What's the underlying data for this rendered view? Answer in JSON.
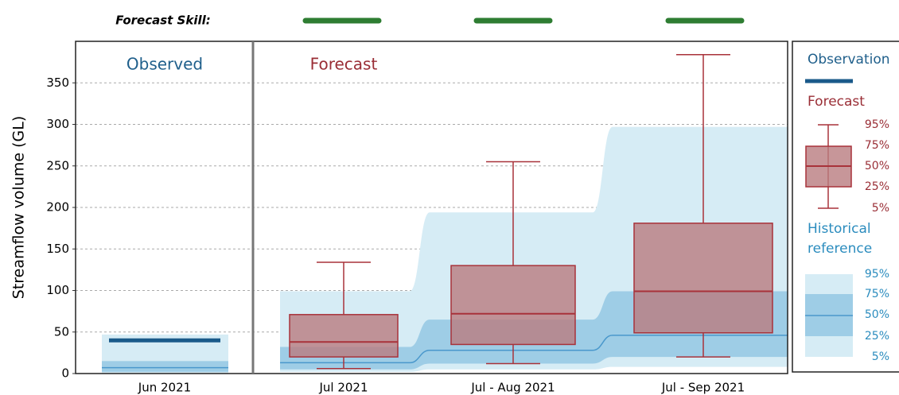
{
  "chart_data": {
    "type": "box",
    "skill_label": "Forecast Skill:",
    "skill_color": "#2e7d32",
    "panels": [
      "Observed",
      "Forecast"
    ],
    "ylabel": "Streamflow volume (GL)",
    "categories": [
      "Jun 2021",
      "Jul 2021",
      "Jul - Aug 2021",
      "Jul - Sep 2021"
    ],
    "ylim": [
      0,
      400
    ],
    "yticks": [
      0,
      50,
      100,
      150,
      200,
      250,
      300,
      350
    ],
    "grid": true,
    "observed": {
      "name": "Observation",
      "color": "#1a5a8a",
      "values": [
        40,
        null,
        null,
        null
      ]
    },
    "forecast": {
      "name": "Forecast",
      "color": "#a8323a",
      "fill": "#b97c80",
      "p5": [
        null,
        6,
        12,
        20
      ],
      "p25": [
        null,
        20,
        35,
        49
      ],
      "p50": [
        null,
        38,
        72,
        99
      ],
      "p75": [
        null,
        71,
        130,
        181
      ],
      "p95": [
        null,
        134,
        255,
        384
      ]
    },
    "historical": {
      "name": "Historical reference",
      "light": "#d6ecf5",
      "mid": "#9ecde6",
      "line": "#4a98cc",
      "p5": [
        0,
        2,
        5,
        8
      ],
      "p25": [
        2,
        5,
        12,
        20
      ],
      "p50": [
        7,
        13,
        28,
        46
      ],
      "p75": [
        15,
        32,
        65,
        99
      ],
      "p95": [
        47,
        99,
        194,
        297
      ]
    },
    "legend_levels": [
      "95%",
      "75%",
      "50%",
      "25%",
      "5%"
    ]
  }
}
